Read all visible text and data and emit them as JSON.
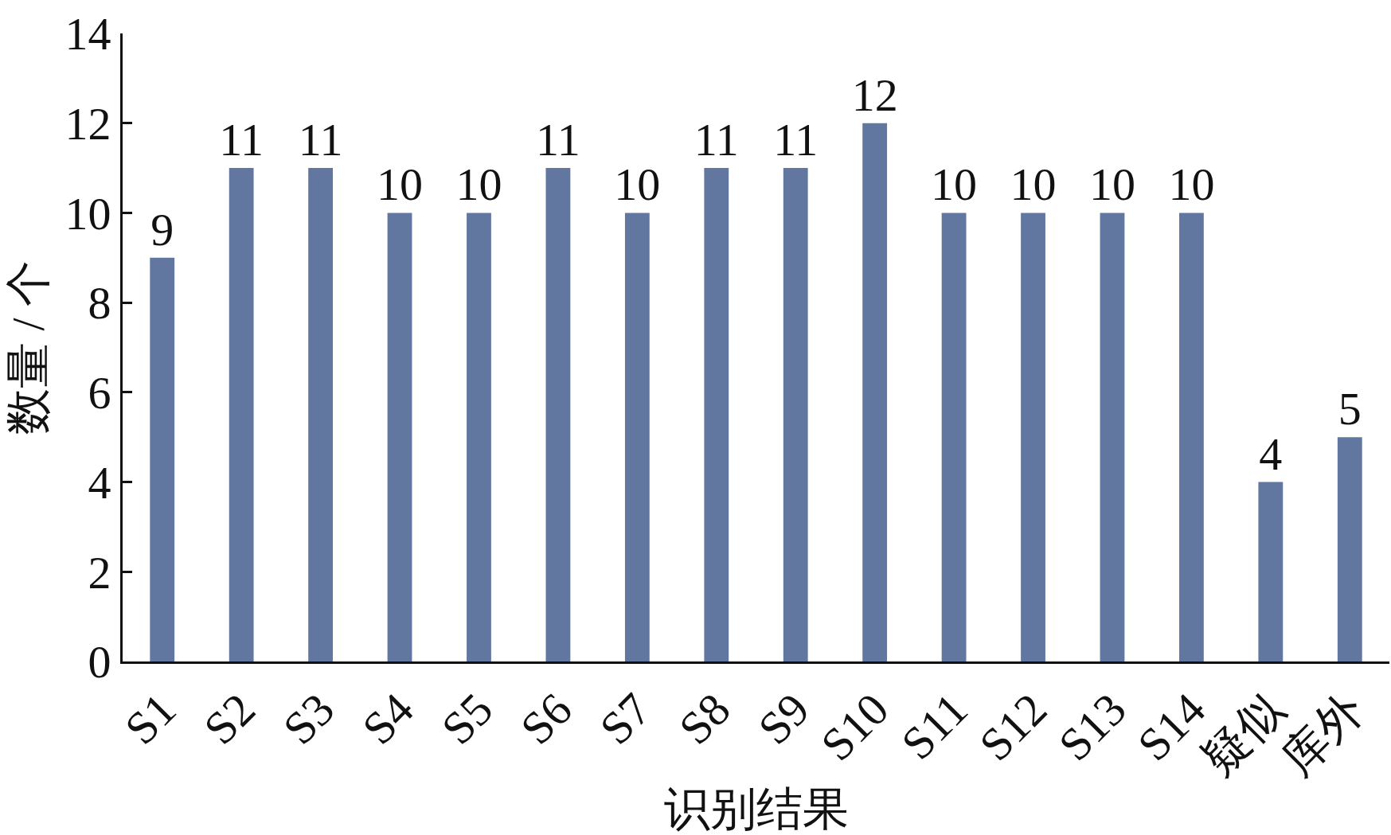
{
  "chart_data": {
    "type": "bar",
    "xlabel": "识别结果",
    "ylabel": "数量 / 个",
    "categories": [
      "S1",
      "S2",
      "S3",
      "S4",
      "S5",
      "S6",
      "S7",
      "S8",
      "S9",
      "S10",
      "S11",
      "S12",
      "S13",
      "S14",
      "疑似",
      "库外"
    ],
    "values": [
      9,
      11,
      11,
      10,
      10,
      11,
      10,
      11,
      11,
      12,
      10,
      10,
      10,
      10,
      4,
      5
    ],
    "color": "#62779f",
    "ylim": [
      0,
      14
    ],
    "yticks": [
      0,
      2,
      4,
      6,
      8,
      10,
      12,
      14
    ],
    "data_labels": true
  }
}
